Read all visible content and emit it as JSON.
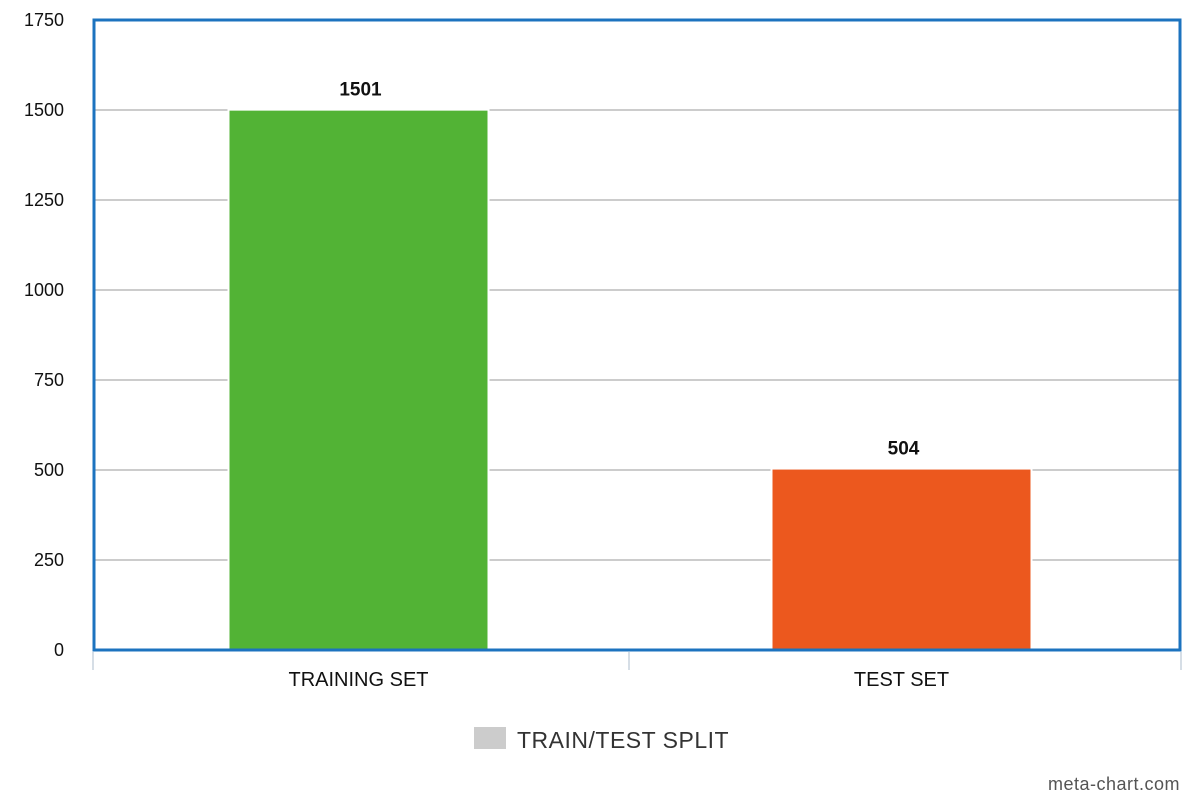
{
  "chart_data": {
    "type": "bar",
    "categories": [
      "TRAINING SET",
      "TEST SET"
    ],
    "series": [
      {
        "name": "TRAIN/TEST SPLIT",
        "values": [
          1501,
          504
        ],
        "colors": [
          "#52b335",
          "#ec581e"
        ]
      }
    ],
    "data_labels": [
      "1501",
      "504"
    ],
    "ylim": [
      0,
      1750
    ],
    "yticks": [
      0,
      250,
      500,
      750,
      1000,
      1250,
      1500,
      1750
    ],
    "grid": true,
    "legend_position": "bottom-center",
    "legend_swatch_color": "#cccccc",
    "frame_color": "#1c73bf",
    "grid_color": "#bbbbbb",
    "xlabel": "",
    "ylabel": "",
    "title": ""
  },
  "watermark": "meta-chart.com"
}
